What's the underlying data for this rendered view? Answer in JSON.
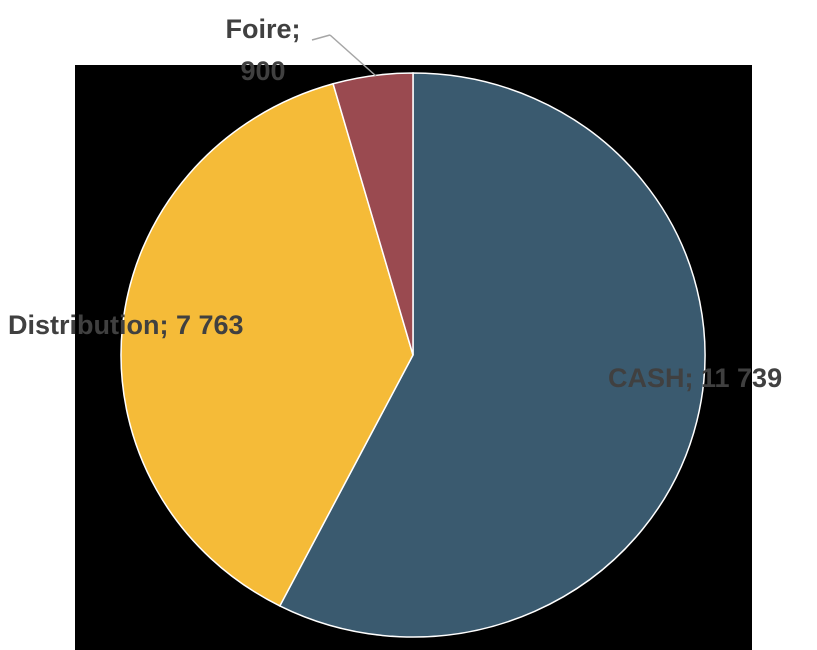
{
  "chart_data": {
    "type": "pie",
    "labels": [
      "CASH; 11 739",
      "Distribution; 7 763",
      "Foire; 900"
    ],
    "values": [
      11739,
      7763,
      900
    ],
    "colors": [
      "#3a5a6f",
      "#f5bb38",
      "#9a4a50"
    ]
  }
}
